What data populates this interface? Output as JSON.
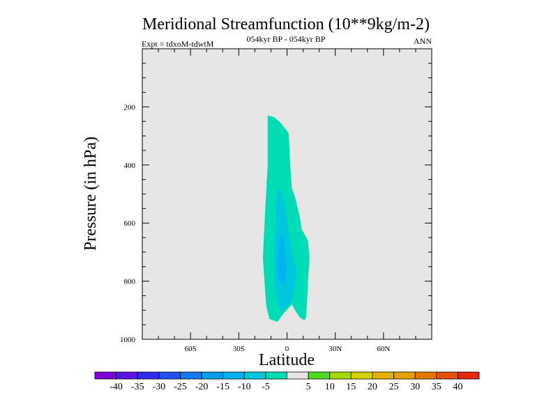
{
  "chart_data": {
    "type": "contour",
    "title": "Meridional Streamfunction (10**9kg/m-2)",
    "subtitle": "054kyr BP - 054kyr BP",
    "left_label": "Expt = tdxoM-tdwtM",
    "right_label": "ANN",
    "xlabel": "Latitude",
    "ylabel": "Pressure (in hPa)",
    "xlim": [
      -90,
      90
    ],
    "ylim": [
      1000,
      0
    ],
    "x_ticks": [
      {
        "value": -60,
        "label": "60S"
      },
      {
        "value": -30,
        "label": "30S"
      },
      {
        "value": 0,
        "label": "0"
      },
      {
        "value": 30,
        "label": "30N"
      },
      {
        "value": 60,
        "label": "60N"
      }
    ],
    "y_ticks": [
      {
        "value": 200,
        "label": "200"
      },
      {
        "value": 400,
        "label": "400"
      },
      {
        "value": 600,
        "label": "600"
      },
      {
        "value": 800,
        "label": "800"
      },
      {
        "value": 1000,
        "label": "1000"
      }
    ],
    "background_color": "#e6e6e6",
    "contour_levels": [
      {
        "range": "-10 to -5",
        "color": "#00dcb4",
        "points": [
          [
            -12,
            230
          ],
          [
            -8,
            235
          ],
          [
            -4,
            255
          ],
          [
            1,
            290
          ],
          [
            2,
            400
          ],
          [
            3,
            480
          ],
          [
            5,
            510
          ],
          [
            8,
            580
          ],
          [
            9,
            620
          ],
          [
            13,
            660
          ],
          [
            14,
            720
          ],
          [
            13,
            800
          ],
          [
            12,
            920
          ],
          [
            11,
            935
          ],
          [
            8,
            925
          ],
          [
            5,
            900
          ],
          [
            3,
            880
          ],
          [
            -2,
            910
          ],
          [
            -6,
            940
          ],
          [
            -11,
            930
          ],
          [
            -13,
            880
          ],
          [
            -14,
            800
          ],
          [
            -15,
            720
          ],
          [
            -14,
            600
          ],
          [
            -12,
            400
          ],
          [
            -12,
            300
          ]
        ]
      },
      {
        "range": "-15 to -10",
        "color": "#00c8dc",
        "points": [
          [
            -6,
            485
          ],
          [
            -3,
            490
          ],
          [
            -1,
            540
          ],
          [
            1,
            620
          ],
          [
            3,
            700
          ],
          [
            6,
            760
          ],
          [
            5,
            830
          ],
          [
            2,
            880
          ],
          [
            -3,
            900
          ],
          [
            -5,
            890
          ],
          [
            -7,
            850
          ],
          [
            -8,
            780
          ],
          [
            -8,
            700
          ],
          [
            -7,
            600
          ],
          [
            -7,
            540
          ]
        ]
      },
      {
        "range": "-20 to -15",
        "color": "#00b4f0",
        "points": [
          [
            -4,
            640
          ],
          [
            -2,
            650
          ],
          [
            -1,
            700
          ],
          [
            0,
            760
          ],
          [
            -1,
            800
          ],
          [
            -3,
            810
          ],
          [
            -5,
            790
          ],
          [
            -6,
            740
          ],
          [
            -5,
            680
          ]
        ]
      }
    ],
    "colorbar": {
      "colors": [
        "#7f00dc",
        "#5a14e6",
        "#3228f0",
        "#1e50f0",
        "#1478f0",
        "#00a0f0",
        "#00b4f0",
        "#00c8dc",
        "#00dcb4",
        "#e6e6e6",
        "#50dc1e",
        "#a0dc00",
        "#d2d200",
        "#e6b400",
        "#e6a000",
        "#e67800",
        "#e65000",
        "#e62800"
      ],
      "labels": [
        "-40",
        "-35",
        "-30",
        "-25",
        "-20",
        "-15",
        "-10",
        "-5",
        "5",
        "10",
        "15",
        "20",
        "25",
        "30",
        "35",
        "40"
      ]
    }
  }
}
